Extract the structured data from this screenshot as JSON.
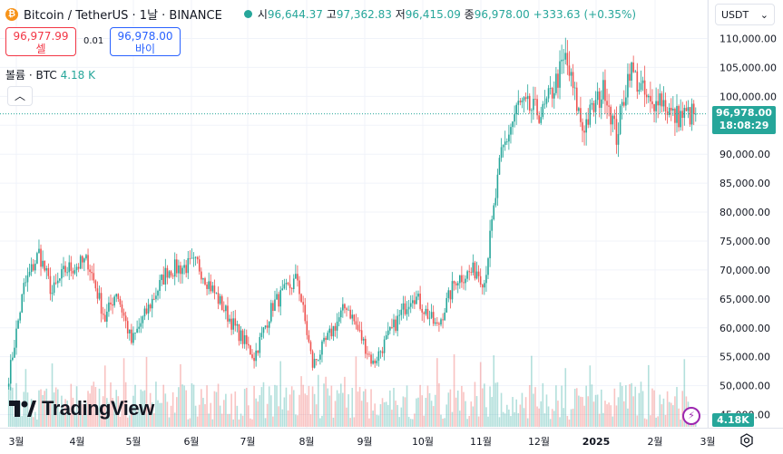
{
  "header": {
    "symbol": "Bitcoin / TetherUS · 1날 · BINANCE",
    "coin_icon": "bitcoin-icon",
    "ohlc": {
      "open_label": "시",
      "open": "96,644.37",
      "high_label": "고",
      "high": "97,362.83",
      "low_label": "저",
      "low": "96,415.09",
      "close_label": "종",
      "close": "96,978.00",
      "change": "+333.63 (+0.35%)"
    }
  },
  "trade": {
    "sell_price": "96,977.99",
    "sell_label": "셀",
    "spread": "0.01",
    "buy_price": "96,978.00",
    "buy_label": "바이"
  },
  "volume_legend": {
    "label": "볼륨 · BTC",
    "value": "4.18 K"
  },
  "currency": "USDT",
  "current_price": {
    "value": "96,978.00",
    "countdown": "18:08:29"
  },
  "volume_badge": "4.18K",
  "brand": "TradingView",
  "colors": {
    "up": "#26a69a",
    "down": "#ef5350",
    "grid": "#f0f3fa"
  },
  "chart_data": {
    "type": "candlestick",
    "y_ticks": [
      "110,000.00",
      "105,000.00",
      "100,000.00",
      "95,000.00",
      "90,000.00",
      "85,000.00",
      "80,000.00",
      "75,000.00",
      "70,000.00",
      "65,000.00",
      "60,000.00",
      "55,000.00",
      "50,000.00",
      "45,000.00"
    ],
    "x_ticks": [
      "3월",
      "4월",
      "5월",
      "6월",
      "7월",
      "8월",
      "9월",
      "10월",
      "11월",
      "12월",
      "2025",
      "2월",
      "3월"
    ],
    "ylim": [
      44000,
      112000
    ],
    "last_price": 96978,
    "anchors": [
      [
        "2024-02-26",
        51500
      ],
      [
        "2024-03-05",
        67000
      ],
      [
        "2024-03-13",
        73000
      ],
      [
        "2024-03-20",
        66000
      ],
      [
        "2024-03-27",
        70000
      ],
      [
        "2024-04-08",
        71500
      ],
      [
        "2024-04-17",
        61500
      ],
      [
        "2024-04-23",
        66500
      ],
      [
        "2024-05-01",
        57500
      ],
      [
        "2024-05-20",
        70000
      ],
      [
        "2024-06-05",
        71000
      ],
      [
        "2024-06-24",
        60500
      ],
      [
        "2024-07-05",
        55000
      ],
      [
        "2024-07-15",
        64000
      ],
      [
        "2024-07-28",
        68500
      ],
      [
        "2024-08-05",
        53500
      ],
      [
        "2024-08-23",
        64000
      ],
      [
        "2024-09-06",
        53800
      ],
      [
        "2024-09-27",
        66000
      ],
      [
        "2024-10-10",
        60000
      ],
      [
        "2024-10-20",
        68500
      ],
      [
        "2024-10-31",
        70000
      ],
      [
        "2024-11-04",
        68000
      ],
      [
        "2024-11-13",
        90000
      ],
      [
        "2024-11-22",
        98500
      ],
      [
        "2024-12-05",
        97000
      ],
      [
        "2024-12-17",
        106500
      ],
      [
        "2024-12-26",
        94500
      ],
      [
        "2025-01-07",
        101500
      ],
      [
        "2025-01-13",
        93000
      ],
      [
        "2025-01-20",
        105000
      ],
      [
        "2025-02-02",
        97000
      ],
      [
        "2025-02-03",
        101000
      ],
      [
        "2025-02-12",
        96500
      ],
      [
        "2025-02-24",
        96978
      ]
    ]
  }
}
